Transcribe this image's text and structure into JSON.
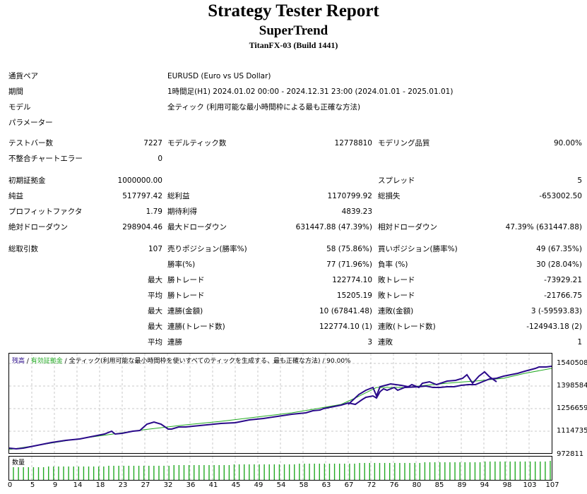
{
  "header": {
    "title": "Strategy Tester Report",
    "ea_name": "SuperTrend",
    "server": "TitanFX-03 (Build 1441)"
  },
  "settings": {
    "symbol_label": "通貨ペア",
    "symbol_value": "EURUSD (Euro vs US Dollar)",
    "period_label": "期間",
    "period_value": "1時間足(H1) 2024.01.02 00:00 - 2024.12.31 23:00 (2024.01.01 - 2025.01.01)",
    "model_label": "モデル",
    "model_value": "全ティック (利用可能な最小時間枠による最も正確な方法)",
    "params_label": "パラメーター"
  },
  "stats": {
    "bars_label": "テストバー数",
    "bars_value": "7227",
    "ticks_label": "モデルティック数",
    "ticks_value": "12778810",
    "quality_label": "モデリング品質",
    "quality_value": "90.00%",
    "errors_label": "不整合チャートエラー",
    "errors_value": "0",
    "deposit_label": "初期証拠金",
    "deposit_value": "1000000.00",
    "spread_label": "スプレッド",
    "spread_value": "5",
    "net_label": "純益",
    "net_value": "517797.42",
    "gross_profit_label": "総利益",
    "gross_profit_value": "1170799.92",
    "gross_loss_label": "総損失",
    "gross_loss_value": "-653002.50",
    "pf_label": "プロフィットファクタ",
    "pf_value": "1.79",
    "expected_label": "期待利得",
    "expected_value": "4839.23",
    "abs_dd_label": "絶対ドローダウン",
    "abs_dd_value": "298904.46",
    "max_dd_label": "最大ドローダウン",
    "max_dd_value": "631447.88 (47.39%)",
    "rel_dd_label": "相対ドローダウン",
    "rel_dd_value": "47.39% (631447.88)",
    "total_trades_label": "総取引数",
    "total_trades_value": "107",
    "short_label": "売りポジション(勝率%)",
    "short_value": "58 (75.86%)",
    "long_label": "買いポジション(勝率%)",
    "long_value": "49 (67.35%)",
    "win_rate_label": "勝率(%)",
    "win_rate_value": "77 (71.96%)",
    "loss_rate_label": "負率 (%)",
    "loss_rate_value": "30 (28.04%)",
    "max_prefix": "最大",
    "avg_prefix": "平均",
    "largest_win_label": "勝トレード",
    "largest_win_value": "122774.10",
    "largest_loss_label": "敗トレード",
    "largest_loss_value": "-73929.21",
    "avg_win_label": "勝トレード",
    "avg_win_value": "15205.19",
    "avg_loss_label": "敗トレード",
    "avg_loss_value": "-21766.75",
    "max_consec_win_money_label": "連勝(金額)",
    "max_consec_win_money_value": "10 (67841.48)",
    "max_consec_loss_money_label": "連敗(金額)",
    "max_consec_loss_money_value": "3 (-59593.83)",
    "max_consec_win_count_label": "連勝(トレード数)",
    "max_consec_win_count_value": "122774.10 (1)",
    "max_consec_loss_count_label": "連敗(トレード数)",
    "max_consec_loss_count_value": "-124943.18 (2)",
    "avg_consec_win_label": "連勝",
    "avg_consec_win_value": "3",
    "avg_consec_loss_label": "連敗",
    "avg_consec_loss_value": "1"
  },
  "chart": {
    "legend_balance": "残高",
    "legend_equity": "有効証拠金",
    "legend_rest": "全ティック(利用可能な最小時間枠を使いすべてのティックを生成する、最も正確な方法)",
    "legend_quality": "90.00%",
    "sep": " / ",
    "volume_label": "数量",
    "balance_color": "#2a0a8a",
    "equity_color": "#22aa22"
  },
  "chart_data": {
    "type": "line",
    "title": "残高 / 有効証拠金",
    "y_ticks": [
      "1540508",
      "1398584",
      "1256659",
      "1114735",
      "972811"
    ],
    "x_ticks": [
      "0",
      "5",
      "9",
      "14",
      "18",
      "23",
      "27",
      "32",
      "36",
      "41",
      "45",
      "49",
      "54",
      "58",
      "63",
      "67",
      "72",
      "76",
      "80",
      "85",
      "89",
      "94",
      "98",
      "103",
      "107"
    ],
    "ylim": [
      972811,
      1540508
    ],
    "xlim": [
      0,
      107
    ],
    "grid": true,
    "series": [
      {
        "name": "残高",
        "color": "#2a0a8a"
      },
      {
        "name": "有効証拠金",
        "color": "#22aa22"
      }
    ]
  }
}
